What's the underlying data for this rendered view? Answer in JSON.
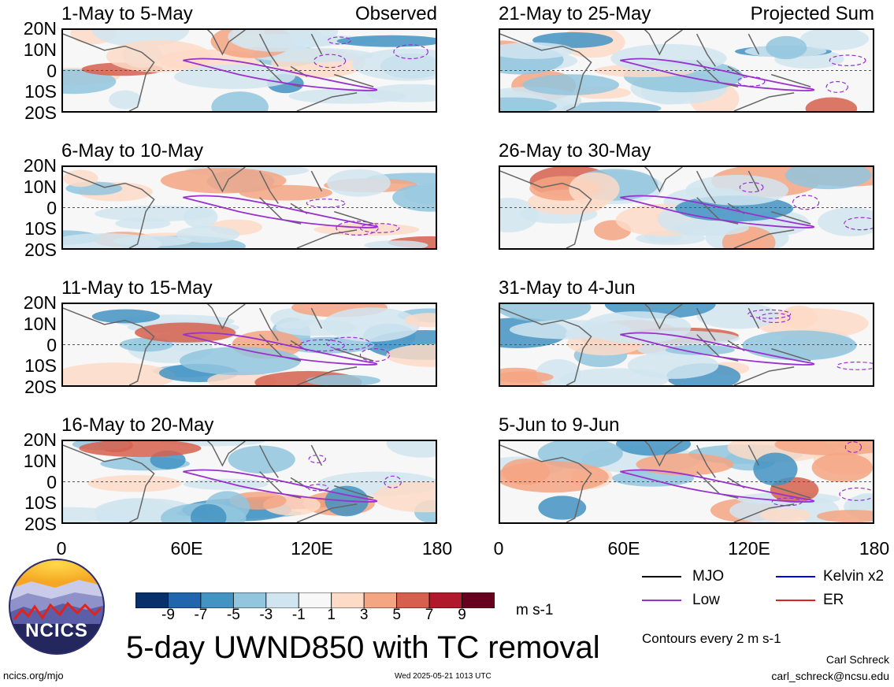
{
  "panels": [
    {
      "title": "1-May to 5-May",
      "tag": "Observed"
    },
    {
      "title": "6-May to 10-May",
      "tag": ""
    },
    {
      "title": "11-May to 15-May",
      "tag": ""
    },
    {
      "title": "16-May to 20-May",
      "tag": ""
    },
    {
      "title": "21-May to 25-May",
      "tag": "Projected Sum"
    },
    {
      "title": "26-May to 30-May",
      "tag": ""
    },
    {
      "title": "31-May to 4-Jun",
      "tag": ""
    },
    {
      "title": "5-Jun to 9-Jun",
      "tag": ""
    }
  ],
  "yticks": [
    "20N",
    "10N",
    "0",
    "10S",
    "20S"
  ],
  "xticks": [
    "0",
    "60E",
    "120E",
    "180"
  ],
  "colorbar": {
    "labels": [
      "-9",
      "-7",
      "-5",
      "-3",
      "-1",
      "1",
      "3",
      "5",
      "7",
      "9"
    ],
    "colors": [
      "#08306b",
      "#2166ac",
      "#4393c3",
      "#92c5de",
      "#d1e5f0",
      "#f7f7f7",
      "#fddbc7",
      "#f4a582",
      "#d6604d",
      "#b2182b",
      "#67001f"
    ],
    "unit": "m s-1"
  },
  "legend": {
    "items": [
      {
        "label": "MJO",
        "color": "#000000"
      },
      {
        "label": "Kelvin x2",
        "color": "#0000ff"
      },
      {
        "label": "Low",
        "color": "#9932cc"
      },
      {
        "label": "ER",
        "color": "#e02020"
      }
    ],
    "contour_note": "Contours every 2 m s-1"
  },
  "main_title": "5-day UWND850 with TC removal",
  "logo_text": "NCICS",
  "footer": {
    "left": "ncics.org/mjo",
    "center": "Wed 2025-05-21 1013 UTC",
    "author": "Carl Schreck",
    "email": "carl_schreck@ncsu.edu"
  },
  "chart_data": {
    "type": "heatmap",
    "variable": "UWND850",
    "xlim": [
      0,
      180
    ],
    "ylim": [
      -20,
      20
    ],
    "contour_interval": 2
  }
}
